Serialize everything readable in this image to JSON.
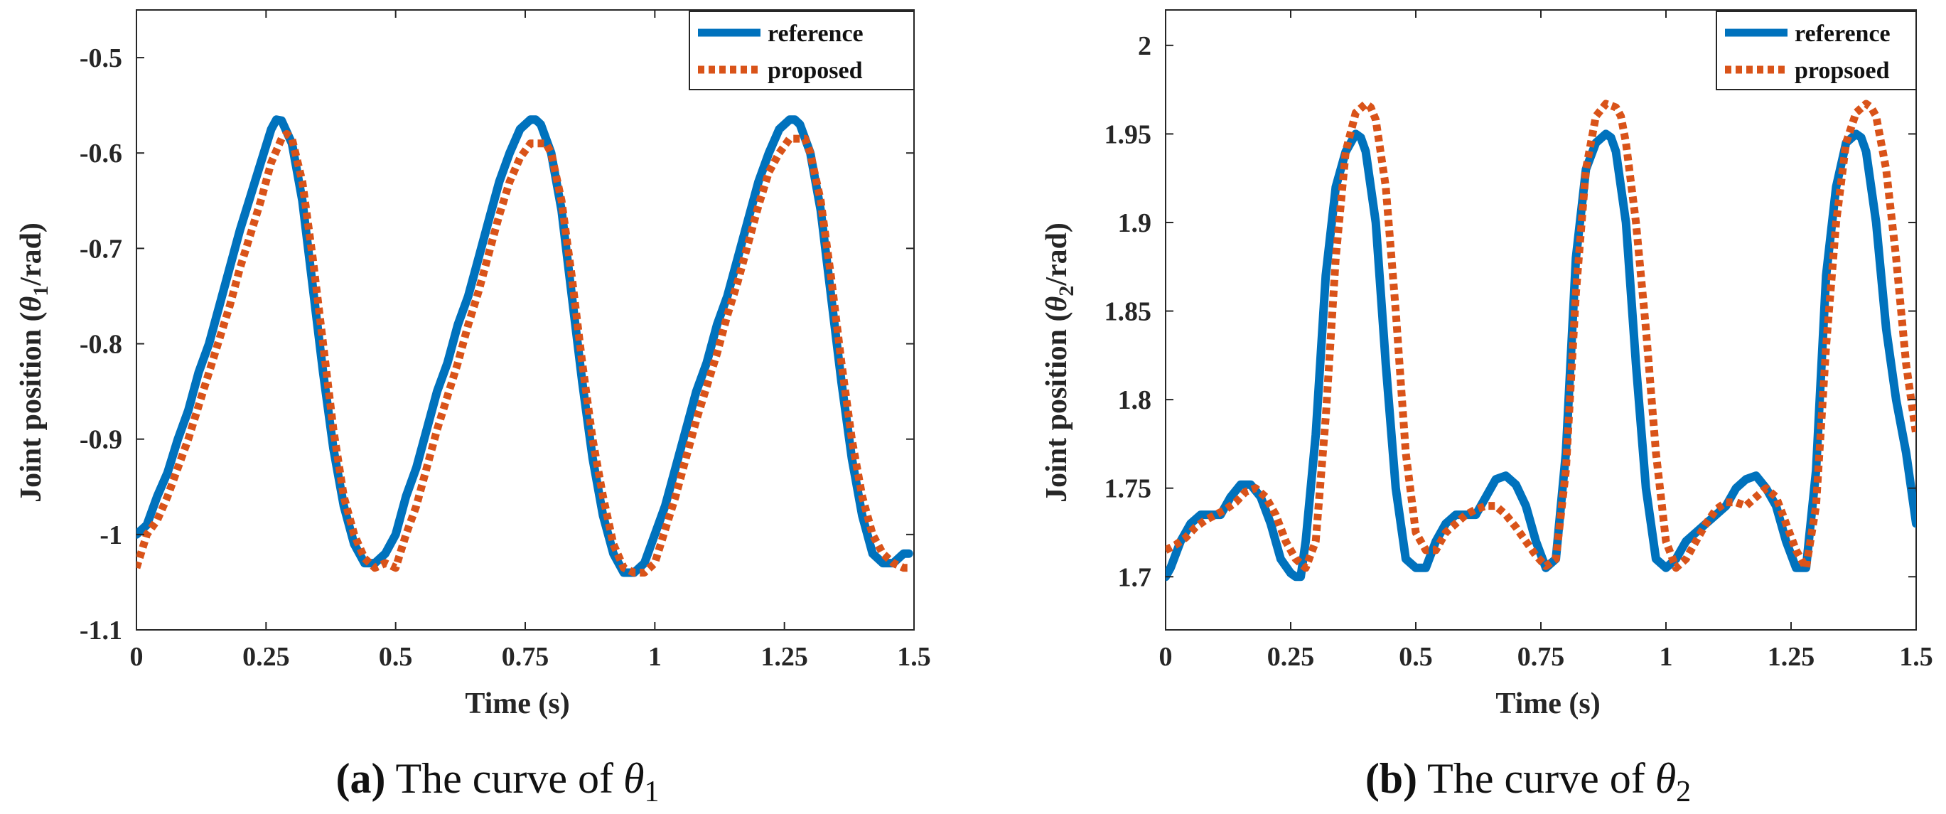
{
  "chart_data": [
    {
      "type": "line",
      "panel_label": "(a)",
      "caption_text": "The curve of",
      "caption_symbol": "θ",
      "caption_subscript": "1",
      "xlabel": "Time (s)",
      "ylabel_prefix": "Joint position (",
      "ylabel_symbol": "θ",
      "ylabel_subscript": "1",
      "ylabel_suffix": "/rad)",
      "xlim": [
        0,
        1.5
      ],
      "ylim": [
        -1.1,
        -0.45
      ],
      "xticks": [
        0,
        0.25,
        0.5,
        0.75,
        1,
        1.25,
        1.5
      ],
      "xtick_labels": [
        "0",
        "0.25",
        "0.5",
        "0.75",
        "1",
        "1.25",
        "1.5"
      ],
      "yticks": [
        -1.1,
        -1,
        -0.9,
        -0.8,
        -0.7,
        -0.6,
        -0.5
      ],
      "ytick_labels": [
        "-1.1",
        "-1",
        "-0.9",
        "-0.8",
        "-0.7",
        "-0.6",
        "-0.5"
      ],
      "grid": false,
      "legend_position": "top-right",
      "series": [
        {
          "name": "reference",
          "style": "solid",
          "color": "#0072BD",
          "x": [
            0.0,
            0.02,
            0.04,
            0.06,
            0.08,
            0.1,
            0.12,
            0.14,
            0.16,
            0.18,
            0.2,
            0.22,
            0.24,
            0.26,
            0.27,
            0.28,
            0.3,
            0.32,
            0.34,
            0.36,
            0.38,
            0.4,
            0.42,
            0.44,
            0.46,
            0.48,
            0.5,
            0.52,
            0.54,
            0.56,
            0.58,
            0.6,
            0.62,
            0.64,
            0.66,
            0.68,
            0.7,
            0.72,
            0.74,
            0.76,
            0.77,
            0.78,
            0.8,
            0.82,
            0.84,
            0.86,
            0.88,
            0.9,
            0.92,
            0.94,
            0.96,
            0.98,
            1.0,
            1.02,
            1.04,
            1.06,
            1.08,
            1.1,
            1.12,
            1.14,
            1.16,
            1.18,
            1.2,
            1.22,
            1.24,
            1.26,
            1.27,
            1.28,
            1.3,
            1.32,
            1.34,
            1.36,
            1.38,
            1.4,
            1.42,
            1.44,
            1.46,
            1.48,
            1.49
          ],
          "y": [
            -1.0,
            -0.99,
            -0.96,
            -0.935,
            -0.9,
            -0.87,
            -0.83,
            -0.8,
            -0.76,
            -0.72,
            -0.68,
            -0.645,
            -0.61,
            -0.575,
            -0.565,
            -0.566,
            -0.59,
            -0.65,
            -0.74,
            -0.83,
            -0.91,
            -0.97,
            -1.01,
            -1.03,
            -1.03,
            -1.02,
            -1.0,
            -0.96,
            -0.93,
            -0.89,
            -0.85,
            -0.82,
            -0.78,
            -0.75,
            -0.71,
            -0.67,
            -0.63,
            -0.6,
            -0.575,
            -0.565,
            -0.565,
            -0.57,
            -0.6,
            -0.66,
            -0.75,
            -0.84,
            -0.92,
            -0.98,
            -1.02,
            -1.04,
            -1.04,
            -1.03,
            -1.0,
            -0.97,
            -0.93,
            -0.89,
            -0.85,
            -0.82,
            -0.78,
            -0.75,
            -0.71,
            -0.67,
            -0.63,
            -0.6,
            -0.575,
            -0.565,
            -0.565,
            -0.57,
            -0.6,
            -0.66,
            -0.75,
            -0.84,
            -0.92,
            -0.98,
            -1.02,
            -1.03,
            -1.03,
            -1.02,
            -1.02
          ]
        },
        {
          "name": "proposed",
          "style": "dotted",
          "color": "#D95319",
          "x": [
            0.0,
            0.02,
            0.04,
            0.06,
            0.08,
            0.1,
            0.12,
            0.14,
            0.16,
            0.18,
            0.2,
            0.22,
            0.24,
            0.26,
            0.28,
            0.29,
            0.3,
            0.32,
            0.34,
            0.36,
            0.38,
            0.4,
            0.42,
            0.44,
            0.46,
            0.48,
            0.5,
            0.52,
            0.54,
            0.56,
            0.58,
            0.6,
            0.62,
            0.64,
            0.66,
            0.68,
            0.7,
            0.72,
            0.74,
            0.76,
            0.78,
            0.79,
            0.8,
            0.82,
            0.84,
            0.86,
            0.88,
            0.9,
            0.92,
            0.94,
            0.96,
            0.98,
            1.0,
            1.02,
            1.04,
            1.06,
            1.08,
            1.1,
            1.12,
            1.14,
            1.16,
            1.18,
            1.2,
            1.22,
            1.24,
            1.26,
            1.28,
            1.29,
            1.3,
            1.32,
            1.34,
            1.36,
            1.38,
            1.4,
            1.42,
            1.44,
            1.46,
            1.48,
            1.49
          ],
          "y": [
            -1.035,
            -1.0,
            -0.985,
            -0.96,
            -0.93,
            -0.9,
            -0.865,
            -0.83,
            -0.795,
            -0.76,
            -0.72,
            -0.685,
            -0.65,
            -0.61,
            -0.585,
            -0.58,
            -0.585,
            -0.63,
            -0.71,
            -0.8,
            -0.89,
            -0.96,
            -1.0,
            -1.025,
            -1.035,
            -1.03,
            -1.035,
            -1.0,
            -0.97,
            -0.93,
            -0.89,
            -0.855,
            -0.82,
            -0.78,
            -0.745,
            -0.705,
            -0.665,
            -0.63,
            -0.605,
            -0.59,
            -0.59,
            -0.59,
            -0.6,
            -0.65,
            -0.73,
            -0.82,
            -0.9,
            -0.96,
            -1.01,
            -1.035,
            -1.04,
            -1.04,
            -1.03,
            -0.995,
            -0.96,
            -0.92,
            -0.88,
            -0.845,
            -0.81,
            -0.77,
            -0.735,
            -0.695,
            -0.655,
            -0.62,
            -0.6,
            -0.585,
            -0.585,
            -0.585,
            -0.6,
            -0.65,
            -0.73,
            -0.82,
            -0.9,
            -0.96,
            -1.0,
            -1.02,
            -1.03,
            -1.035,
            -1.035
          ]
        }
      ]
    },
    {
      "type": "line",
      "panel_label": "(b)",
      "caption_text": "The curve of",
      "caption_symbol": "θ",
      "caption_subscript": "2",
      "xlabel": "Time (s)",
      "ylabel_prefix": "Joint position (",
      "ylabel_symbol": "θ",
      "ylabel_subscript": "2",
      "ylabel_suffix": "/rad)",
      "xlim": [
        0,
        1.5
      ],
      "ylim": [
        1.67,
        2.02
      ],
      "xticks": [
        0,
        0.25,
        0.5,
        0.75,
        1,
        1.25,
        1.5
      ],
      "xtick_labels": [
        "0",
        "0.25",
        "0.5",
        "0.75",
        "1",
        "1.25",
        "1.5"
      ],
      "yticks": [
        1.7,
        1.75,
        1.8,
        1.85,
        1.9,
        1.95,
        2.0
      ],
      "ytick_labels": [
        "1.7",
        "1.75",
        "1.8",
        "1.85",
        "1.9",
        "1.95",
        "2"
      ],
      "grid": false,
      "legend_position": "top-right",
      "series": [
        {
          "name": "reference",
          "style": "solid",
          "color": "#0072BD",
          "x": [
            0.0,
            0.01,
            0.03,
            0.05,
            0.07,
            0.09,
            0.11,
            0.13,
            0.15,
            0.17,
            0.19,
            0.21,
            0.23,
            0.25,
            0.26,
            0.27,
            0.28,
            0.3,
            0.32,
            0.34,
            0.36,
            0.38,
            0.39,
            0.4,
            0.42,
            0.44,
            0.46,
            0.48,
            0.5,
            0.52,
            0.54,
            0.56,
            0.58,
            0.6,
            0.62,
            0.64,
            0.66,
            0.68,
            0.7,
            0.72,
            0.74,
            0.76,
            0.78,
            0.8,
            0.82,
            0.84,
            0.86,
            0.88,
            0.89,
            0.9,
            0.92,
            0.94,
            0.96,
            0.98,
            1.0,
            1.02,
            1.04,
            1.06,
            1.08,
            1.1,
            1.12,
            1.14,
            1.16,
            1.18,
            1.2,
            1.22,
            1.24,
            1.26,
            1.28,
            1.3,
            1.32,
            1.34,
            1.36,
            1.38,
            1.39,
            1.4,
            1.42,
            1.44,
            1.46,
            1.48,
            1.5
          ],
          "y": [
            1.7,
            1.705,
            1.72,
            1.73,
            1.735,
            1.735,
            1.735,
            1.745,
            1.752,
            1.752,
            1.745,
            1.73,
            1.71,
            1.702,
            1.7,
            1.7,
            1.72,
            1.78,
            1.87,
            1.92,
            1.94,
            1.95,
            1.948,
            1.94,
            1.9,
            1.82,
            1.75,
            1.71,
            1.705,
            1.705,
            1.72,
            1.73,
            1.735,
            1.735,
            1.735,
            1.745,
            1.755,
            1.757,
            1.752,
            1.74,
            1.72,
            1.705,
            1.71,
            1.77,
            1.88,
            1.93,
            1.945,
            1.95,
            1.948,
            1.94,
            1.9,
            1.82,
            1.75,
            1.71,
            1.705,
            1.71,
            1.72,
            1.725,
            1.73,
            1.735,
            1.74,
            1.75,
            1.755,
            1.757,
            1.75,
            1.74,
            1.72,
            1.705,
            1.705,
            1.76,
            1.87,
            1.92,
            1.945,
            1.95,
            1.948,
            1.94,
            1.9,
            1.84,
            1.8,
            1.77,
            1.73
          ]
        },
        {
          "name": "propsoed",
          "style": "dotted",
          "color": "#D95319",
          "x": [
            0.0,
            0.02,
            0.04,
            0.06,
            0.08,
            0.1,
            0.12,
            0.14,
            0.16,
            0.18,
            0.2,
            0.22,
            0.24,
            0.26,
            0.28,
            0.3,
            0.32,
            0.34,
            0.36,
            0.38,
            0.4,
            0.41,
            0.42,
            0.44,
            0.46,
            0.48,
            0.5,
            0.52,
            0.54,
            0.56,
            0.58,
            0.6,
            0.62,
            0.64,
            0.66,
            0.68,
            0.7,
            0.72,
            0.74,
            0.76,
            0.78,
            0.8,
            0.82,
            0.84,
            0.86,
            0.88,
            0.9,
            0.91,
            0.92,
            0.94,
            0.96,
            0.98,
            1.0,
            1.02,
            1.04,
            1.06,
            1.08,
            1.1,
            1.12,
            1.14,
            1.16,
            1.18,
            1.2,
            1.22,
            1.24,
            1.26,
            1.28,
            1.3,
            1.32,
            1.34,
            1.36,
            1.38,
            1.4,
            1.41,
            1.42,
            1.44,
            1.46,
            1.48,
            1.5
          ],
          "y": [
            1.715,
            1.718,
            1.722,
            1.728,
            1.732,
            1.735,
            1.738,
            1.742,
            1.748,
            1.75,
            1.745,
            1.735,
            1.72,
            1.71,
            1.705,
            1.72,
            1.79,
            1.88,
            1.94,
            1.962,
            1.967,
            1.965,
            1.958,
            1.92,
            1.85,
            1.77,
            1.725,
            1.715,
            1.715,
            1.725,
            1.73,
            1.735,
            1.738,
            1.74,
            1.74,
            1.735,
            1.728,
            1.72,
            1.712,
            1.706,
            1.71,
            1.76,
            1.86,
            1.93,
            1.96,
            1.967,
            1.965,
            1.96,
            1.945,
            1.9,
            1.84,
            1.77,
            1.72,
            1.705,
            1.71,
            1.72,
            1.73,
            1.738,
            1.742,
            1.742,
            1.74,
            1.745,
            1.75,
            1.745,
            1.73,
            1.715,
            1.705,
            1.74,
            1.83,
            1.9,
            1.945,
            1.962,
            1.967,
            1.965,
            1.96,
            1.93,
            1.88,
            1.82,
            1.78
          ]
        }
      ]
    }
  ]
}
